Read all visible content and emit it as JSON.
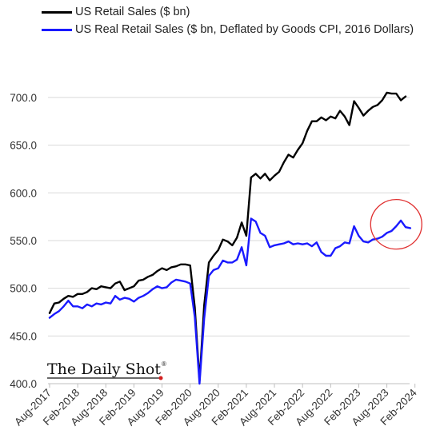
{
  "chart_data": {
    "type": "line",
    "title": "",
    "xlabel": "",
    "ylabel": "",
    "ylim": [
      400,
      720
    ],
    "yticks": [
      "700.0",
      "650.0",
      "600.0",
      "550.0",
      "500.0",
      "450.0",
      "400.0"
    ],
    "ytick_values": [
      700,
      650,
      600,
      550,
      500,
      450,
      400
    ],
    "xticks": [
      "Aug-2017",
      "Feb-2018",
      "Aug-2018",
      "Feb-2019",
      "Aug-2019",
      "Feb-2020",
      "Aug-2020",
      "Feb-2021",
      "Aug-2021",
      "Feb-2022",
      "Aug-2022",
      "Feb-2023",
      "Aug-2023",
      "Feb-2024"
    ],
    "grid": "horizontal",
    "legend_position": "top-left",
    "annotation": "red circle around recent real retail sales peak (2023-2024)",
    "series": [
      {
        "name": "US Retail Sales ($ bn)",
        "color": "#000000",
        "x_start": "Aug-2017",
        "frequency": "monthly",
        "values": [
          474,
          484,
          485,
          489,
          492,
          491,
          494,
          494,
          496,
          500,
          499,
          502,
          501,
          500,
          505,
          507,
          498,
          500,
          502,
          508,
          509,
          512,
          514,
          518,
          521,
          519,
          522,
          523,
          525,
          525,
          524,
          480,
          403,
          482,
          527,
          534,
          540,
          551,
          549,
          545,
          553,
          569,
          555,
          616,
          620,
          615,
          620,
          613,
          618,
          622,
          632,
          640,
          637,
          645,
          652,
          665,
          675,
          675,
          679,
          676,
          680,
          678,
          686,
          680,
          671,
          696,
          689,
          681,
          686,
          690,
          692,
          697,
          705,
          704,
          704,
          697,
          701
        ]
      },
      {
        "name": "US Real Retail Sales ($ bn, Deflated by Goods CPI, 2016 Dollars)",
        "color": "#1a1aff",
        "x_start": "Aug-2017",
        "frequency": "monthly",
        "values": [
          469,
          473,
          476,
          481,
          487,
          481,
          481,
          479,
          483,
          481,
          484,
          483,
          485,
          484,
          492,
          488,
          490,
          489,
          486,
          490,
          492,
          495,
          499,
          502,
          500,
          501,
          506,
          509,
          508,
          507,
          505,
          470,
          400,
          468,
          513,
          519,
          521,
          529,
          527,
          527,
          530,
          543,
          524,
          573,
          570,
          558,
          555,
          543,
          545,
          546,
          547,
          549,
          546,
          547,
          546,
          547,
          544,
          548,
          538,
          534,
          534,
          542,
          544,
          548,
          547,
          565,
          555,
          549,
          548,
          551,
          552,
          554,
          558,
          560,
          565,
          571,
          564,
          563
        ]
      }
    ]
  },
  "legend": {
    "items": [
      {
        "label": "US Retail Sales ($ bn)",
        "color": "#000000"
      },
      {
        "label": "US Real Retail Sales ($ bn, Deflated by Goods CPI, 2016 Dollars)",
        "color": "#1a1aff"
      }
    ]
  },
  "brand": {
    "text": "The Daily Shot",
    "mark": "®"
  },
  "colors": {
    "annotation": "#e03030",
    "axis": "#bfbfbf",
    "grid": "#d9d9d9"
  }
}
